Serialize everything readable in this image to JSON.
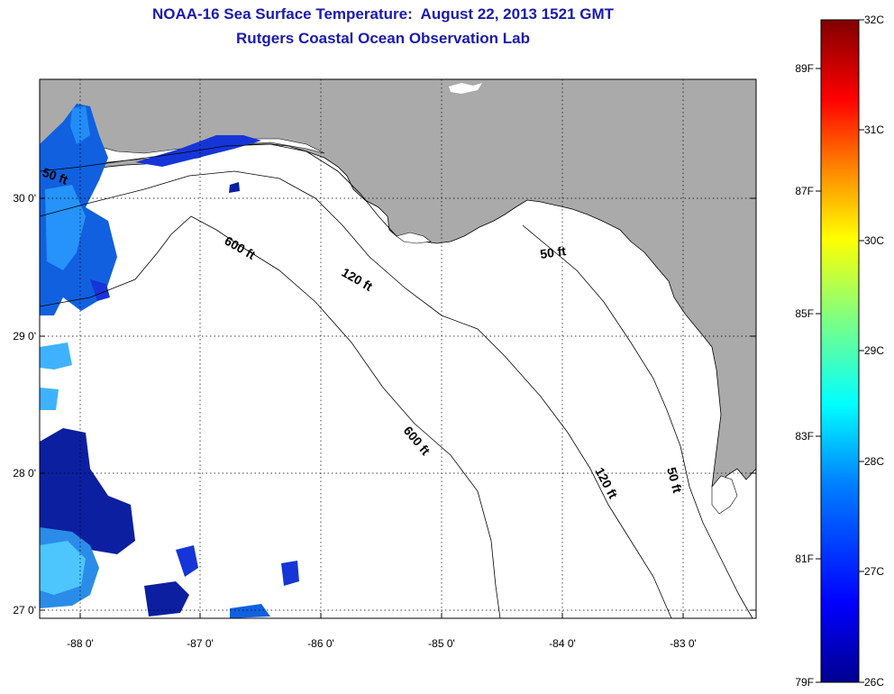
{
  "title": {
    "line1": "NOAA-16 Sea Surface Temperature:  August 22, 2013 1521 GMT",
    "line2": "Rutgers Coastal Ocean Observation Lab"
  },
  "map": {
    "lon_range": [
      -88.33,
      -82.45
    ],
    "lat_range": [
      26.94,
      30.86
    ],
    "lon_ticks": [
      "-88 0'",
      "-87 0'",
      "-86 0'",
      "-85 0'",
      "-84 0'",
      "-83 0'"
    ],
    "lat_ticks": [
      "30 0'",
      "29 0'",
      "28 0'",
      "27 0'"
    ],
    "land_color": "#aaaaaa",
    "water_color": "#ffffff",
    "contour_labels": [
      "50 ft",
      "600 ft",
      "120 ft",
      "50 ft",
      "600 ft",
      "120 ft",
      "50 ft"
    ]
  },
  "colorbar": {
    "celsius_labels": [
      "32C",
      "31C",
      "30C",
      "29C",
      "28C",
      "27C",
      "26C"
    ],
    "fahrenheit_labels": [
      "89F",
      "87F",
      "85F",
      "83F",
      "81F",
      "79F"
    ],
    "colors": [
      "#00008f",
      "#0000ff",
      "#0080ff",
      "#00ffff",
      "#80ff80",
      "#ffff00",
      "#ff8000",
      "#ff0000",
      "#800000"
    ]
  }
}
